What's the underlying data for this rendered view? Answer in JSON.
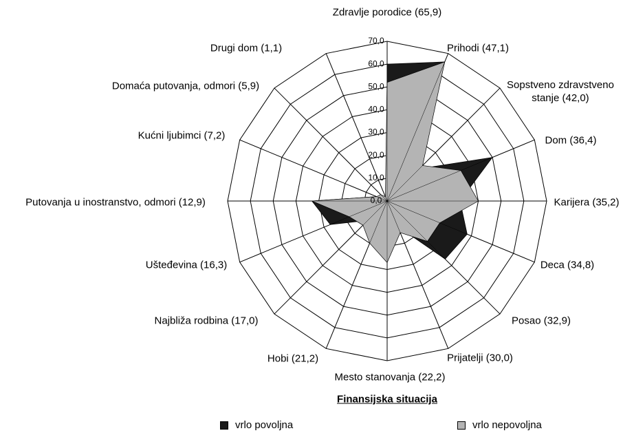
{
  "chart_data": {
    "type": "radar",
    "title": "Finansijska situacija",
    "categories": [
      "Zdravlje porodice (65,9)",
      "Prihodi (47,1)",
      "Sopstveno zdravstveno stanje (42,0)",
      "Dom (36,4)",
      "Karijera (35,2)",
      "Deca (34,8)",
      "Posao (32,9)",
      "Prijatelji (30,0)",
      "Mesto stanovanja (22,2)",
      "Hobi (21,2)",
      "Najbliža rodbina (17,0)",
      "Ušteđevina (16,3)",
      "Putovanja u inostranstvo, odmori (12,9)",
      "Kućni ljubimci (7,2)",
      "Domaća putovanja, odmori (5,9)",
      "Drugi dom (1,1)"
    ],
    "series": [
      {
        "name": "vrlo povoljna",
        "color": "#1a1a1a",
        "values": [
          60,
          66,
          20,
          50,
          32,
          38,
          36,
          12,
          12,
          10,
          12,
          27,
          33,
          5,
          3,
          1
        ]
      },
      {
        "name": "vrlo nepovoljna",
        "color": "#b4b4b4",
        "values": [
          52,
          66,
          22,
          35,
          40,
          25,
          25,
          15,
          27,
          20,
          15,
          18,
          33,
          5,
          4,
          2
        ]
      }
    ],
    "ylim": [
      0,
      70
    ],
    "yticks": [
      {
        "value": 0,
        "label": "0,0"
      },
      {
        "value": 10,
        "label": "10,0"
      },
      {
        "value": 20,
        "label": "20,0"
      },
      {
        "value": 30,
        "label": "30,0"
      },
      {
        "value": 40,
        "label": "40,0"
      },
      {
        "value": 50,
        "label": "50,0"
      },
      {
        "value": 60,
        "label": "60,0"
      },
      {
        "value": 70,
        "label": "70,0"
      }
    ],
    "grid": true
  }
}
